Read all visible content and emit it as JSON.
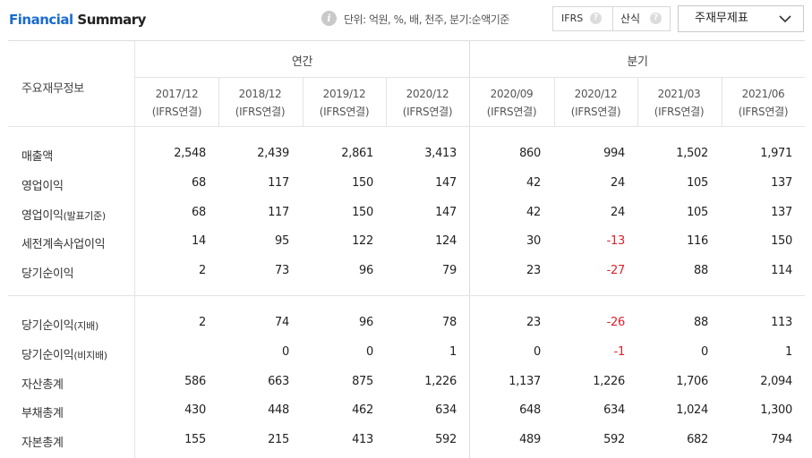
{
  "header": {
    "title_part1": "Financial",
    "title_part2": " Summary",
    "info_icon": "info-icon",
    "unit_text": "단위: 억원, %, 배, 천주, 분기:순액기준",
    "toggle": {
      "option1": "IFRS",
      "option2": "산식",
      "help": "?"
    },
    "dropdown": {
      "selected": "주재무제표",
      "icon": "chevron-down-icon"
    }
  },
  "table": {
    "row_header": "주요재무정보",
    "groups": {
      "annual": "연간",
      "quarterly": "분기"
    },
    "periods": [
      {
        "date": "2017/12",
        "basis": "(IFRS연결)"
      },
      {
        "date": "2018/12",
        "basis": "(IFRS연결)"
      },
      {
        "date": "2019/12",
        "basis": "(IFRS연결)"
      },
      {
        "date": "2020/12",
        "basis": "(IFRS연결)"
      },
      {
        "date": "2020/09",
        "basis": "(IFRS연결)"
      },
      {
        "date": "2020/12",
        "basis": "(IFRS연결)"
      },
      {
        "date": "2021/03",
        "basis": "(IFRS연결)"
      },
      {
        "date": "2021/06",
        "basis": "(IFRS연결)"
      }
    ],
    "rows": [
      {
        "label": "매출액",
        "sub": "",
        "values": [
          "2,548",
          "2,439",
          "2,861",
          "3,413",
          "860",
          "994",
          "1,502",
          "1,971"
        ]
      },
      {
        "label": "영업이익",
        "sub": "",
        "values": [
          "68",
          "117",
          "150",
          "147",
          "42",
          "24",
          "105",
          "137"
        ]
      },
      {
        "label": "영업이익",
        "sub": "(발표기준)",
        "values": [
          "68",
          "117",
          "150",
          "147",
          "42",
          "24",
          "105",
          "137"
        ]
      },
      {
        "label": "세전계속사업이익",
        "sub": "",
        "values": [
          "14",
          "95",
          "122",
          "124",
          "30",
          "-13",
          "116",
          "150"
        ]
      },
      {
        "label": "당기순이익",
        "sub": "",
        "values": [
          "2",
          "73",
          "96",
          "79",
          "23",
          "-27",
          "88",
          "114"
        ]
      },
      {
        "label": "당기순이익",
        "sub": "(지배)",
        "values": [
          "2",
          "74",
          "96",
          "78",
          "23",
          "-26",
          "88",
          "113"
        ]
      },
      {
        "label": "당기순이익",
        "sub": "(비지배)",
        "values": [
          "",
          "0",
          "0",
          "1",
          "0",
          "-1",
          "0",
          "1"
        ]
      },
      {
        "label": "자산총계",
        "sub": "",
        "values": [
          "586",
          "663",
          "875",
          "1,226",
          "1,137",
          "1,226",
          "1,706",
          "2,094"
        ]
      },
      {
        "label": "부채총계",
        "sub": "",
        "values": [
          "430",
          "448",
          "462",
          "634",
          "648",
          "634",
          "1,024",
          "1,300"
        ]
      },
      {
        "label": "자본총계",
        "sub": "",
        "values": [
          "155",
          "215",
          "413",
          "592",
          "489",
          "592",
          "682",
          "794"
        ]
      }
    ]
  },
  "colors": {
    "brand": "#1a6cd0",
    "negative": "#e0202a"
  }
}
